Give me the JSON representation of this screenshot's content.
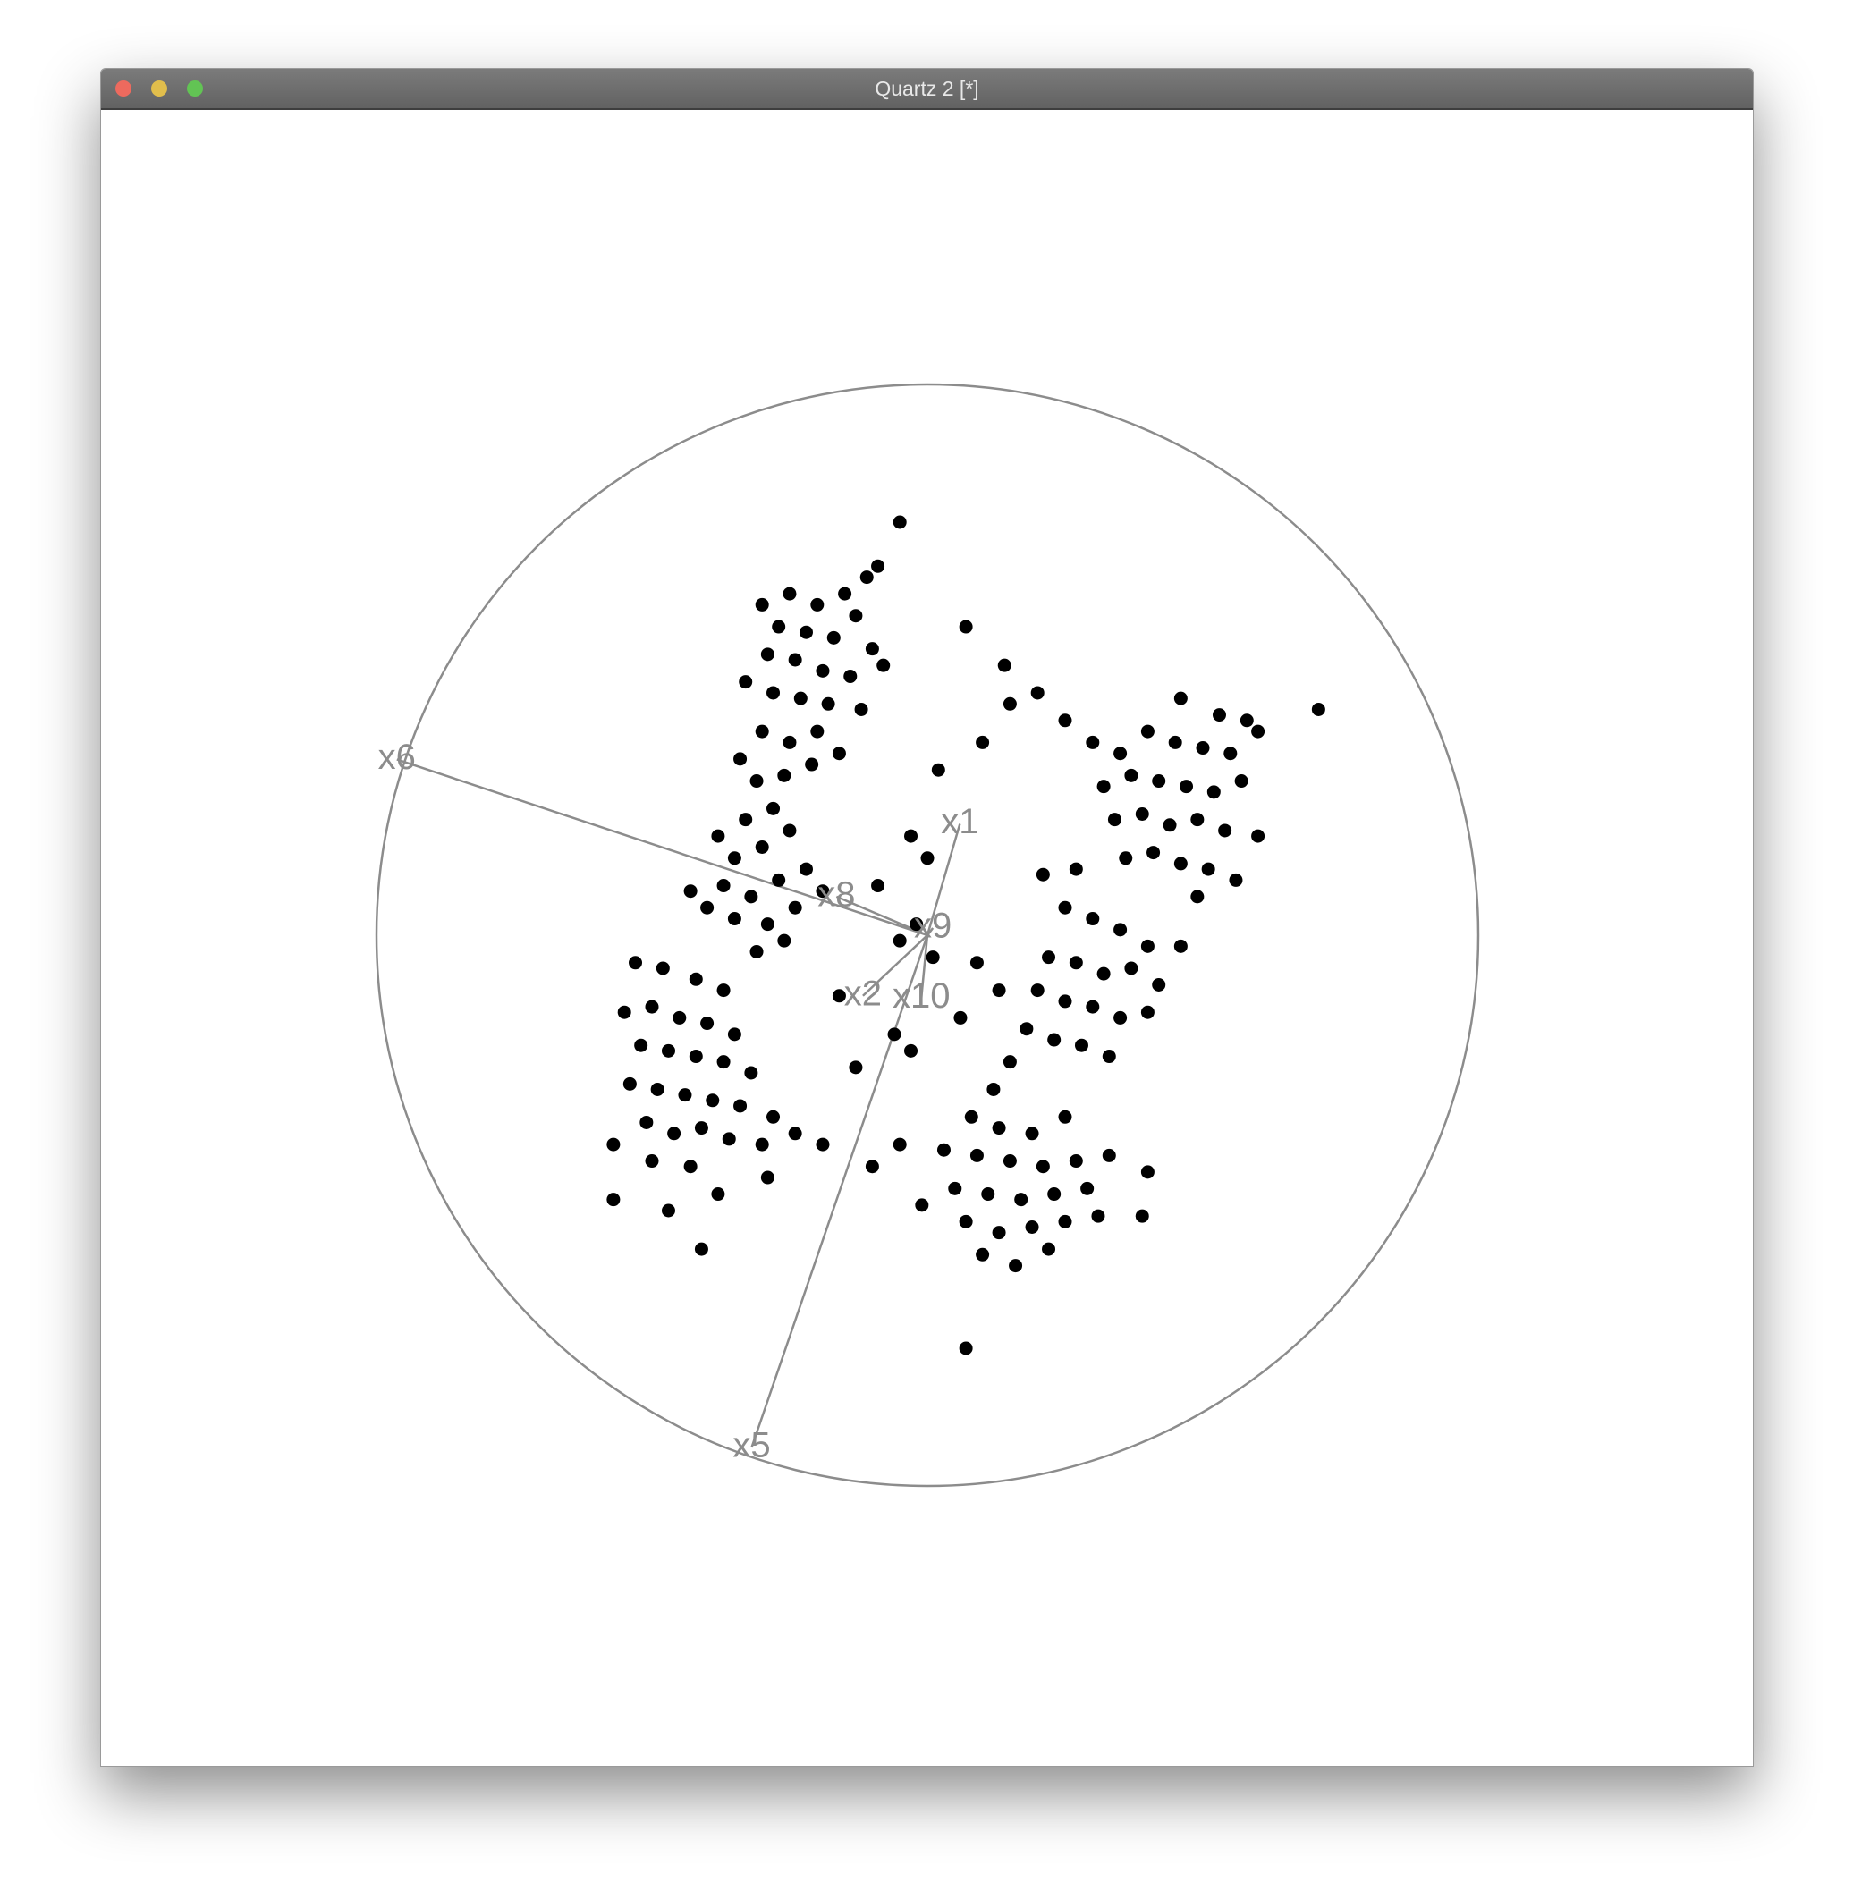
{
  "window": {
    "title": "Quartz 2 [*]"
  },
  "chart_data": {
    "type": "tour",
    "axes": [
      {
        "name": "x6",
        "x": -0.963,
        "y": 0.319
      },
      {
        "name": "x5",
        "x": -0.319,
        "y": -0.93
      },
      {
        "name": "x1",
        "x": 0.059,
        "y": 0.202
      },
      {
        "name": "x8",
        "x": -0.165,
        "y": 0.07
      },
      {
        "name": "x9",
        "x": 0.01,
        "y": 0.013
      },
      {
        "name": "x2",
        "x": -0.117,
        "y": -0.11
      },
      {
        "name": "x10",
        "x": -0.011,
        "y": -0.114
      }
    ],
    "points": [
      [
        -0.05,
        0.75
      ],
      [
        -0.09,
        0.67
      ],
      [
        -0.11,
        0.65
      ],
      [
        -0.15,
        0.62
      ],
      [
        -0.13,
        0.58
      ],
      [
        -0.2,
        0.6
      ],
      [
        -0.25,
        0.62
      ],
      [
        -0.3,
        0.6
      ],
      [
        -0.27,
        0.56
      ],
      [
        -0.22,
        0.55
      ],
      [
        -0.17,
        0.54
      ],
      [
        -0.1,
        0.52
      ],
      [
        -0.08,
        0.49
      ],
      [
        -0.14,
        0.47
      ],
      [
        -0.19,
        0.48
      ],
      [
        -0.24,
        0.5
      ],
      [
        -0.29,
        0.51
      ],
      [
        -0.33,
        0.46
      ],
      [
        -0.28,
        0.44
      ],
      [
        -0.23,
        0.43
      ],
      [
        -0.18,
        0.42
      ],
      [
        -0.12,
        0.41
      ],
      [
        -0.2,
        0.37
      ],
      [
        -0.25,
        0.35
      ],
      [
        -0.3,
        0.37
      ],
      [
        -0.34,
        0.32
      ],
      [
        -0.31,
        0.28
      ],
      [
        -0.26,
        0.29
      ],
      [
        -0.21,
        0.31
      ],
      [
        -0.16,
        0.33
      ],
      [
        -0.28,
        0.23
      ],
      [
        -0.33,
        0.21
      ],
      [
        -0.38,
        0.18
      ],
      [
        -0.35,
        0.14
      ],
      [
        -0.3,
        0.16
      ],
      [
        -0.25,
        0.19
      ],
      [
        -0.22,
        0.12
      ],
      [
        -0.27,
        0.1
      ],
      [
        -0.32,
        0.07
      ],
      [
        -0.37,
        0.09
      ],
      [
        -0.4,
        0.05
      ],
      [
        -0.35,
        0.03
      ],
      [
        -0.29,
        0.02
      ],
      [
        -0.24,
        0.05
      ],
      [
        -0.19,
        0.08
      ],
      [
        -0.43,
        0.08
      ],
      [
        -0.31,
        -0.03
      ],
      [
        -0.26,
        -0.01
      ],
      [
        -0.53,
        -0.05
      ],
      [
        -0.48,
        -0.06
      ],
      [
        -0.42,
        -0.08
      ],
      [
        -0.37,
        -0.1
      ],
      [
        -0.55,
        -0.14
      ],
      [
        -0.5,
        -0.13
      ],
      [
        -0.45,
        -0.15
      ],
      [
        -0.4,
        -0.16
      ],
      [
        -0.35,
        -0.18
      ],
      [
        -0.52,
        -0.2
      ],
      [
        -0.47,
        -0.21
      ],
      [
        -0.42,
        -0.22
      ],
      [
        -0.37,
        -0.23
      ],
      [
        -0.32,
        -0.25
      ],
      [
        -0.54,
        -0.27
      ],
      [
        -0.49,
        -0.28
      ],
      [
        -0.44,
        -0.29
      ],
      [
        -0.39,
        -0.3
      ],
      [
        -0.34,
        -0.31
      ],
      [
        -0.28,
        -0.33
      ],
      [
        -0.51,
        -0.34
      ],
      [
        -0.46,
        -0.36
      ],
      [
        -0.41,
        -0.35
      ],
      [
        -0.36,
        -0.37
      ],
      [
        -0.3,
        -0.38
      ],
      [
        -0.24,
        -0.36
      ],
      [
        -0.57,
        -0.38
      ],
      [
        -0.5,
        -0.41
      ],
      [
        -0.43,
        -0.42
      ],
      [
        -0.19,
        -0.38
      ],
      [
        -0.57,
        -0.48
      ],
      [
        -0.47,
        -0.5
      ],
      [
        -0.41,
        -0.57
      ],
      [
        -0.29,
        -0.44
      ],
      [
        -0.38,
        -0.47
      ],
      [
        0.71,
        0.41
      ],
      [
        0.46,
        0.43
      ],
      [
        0.53,
        0.4
      ],
      [
        0.58,
        0.39
      ],
      [
        0.35,
        0.33
      ],
      [
        0.4,
        0.37
      ],
      [
        0.45,
        0.35
      ],
      [
        0.5,
        0.34
      ],
      [
        0.55,
        0.33
      ],
      [
        0.6,
        0.37
      ],
      [
        0.32,
        0.27
      ],
      [
        0.37,
        0.29
      ],
      [
        0.42,
        0.28
      ],
      [
        0.47,
        0.27
      ],
      [
        0.52,
        0.26
      ],
      [
        0.57,
        0.28
      ],
      [
        0.34,
        0.21
      ],
      [
        0.39,
        0.22
      ],
      [
        0.44,
        0.2
      ],
      [
        0.49,
        0.21
      ],
      [
        0.54,
        0.19
      ],
      [
        0.6,
        0.18
      ],
      [
        0.36,
        0.14
      ],
      [
        0.41,
        0.15
      ],
      [
        0.46,
        0.13
      ],
      [
        0.51,
        0.12
      ],
      [
        0.56,
        0.1
      ],
      [
        0.49,
        0.07
      ],
      [
        0.3,
        0.35
      ],
      [
        0.25,
        0.39
      ],
      [
        0.2,
        0.44
      ],
      [
        0.14,
        0.49
      ],
      [
        0.07,
        0.56
      ],
      [
        0.15,
        0.42
      ],
      [
        0.1,
        0.35
      ],
      [
        0.02,
        0.3
      ],
      [
        0.25,
        0.05
      ],
      [
        0.3,
        0.03
      ],
      [
        0.35,
        0.01
      ],
      [
        0.4,
        -0.02
      ],
      [
        0.22,
        -0.04
      ],
      [
        0.27,
        -0.05
      ],
      [
        0.32,
        -0.07
      ],
      [
        0.37,
        -0.06
      ],
      [
        0.42,
        -0.09
      ],
      [
        0.2,
        -0.1
      ],
      [
        0.25,
        -0.12
      ],
      [
        0.3,
        -0.13
      ],
      [
        0.35,
        -0.15
      ],
      [
        0.4,
        -0.14
      ],
      [
        0.18,
        -0.17
      ],
      [
        0.23,
        -0.19
      ],
      [
        0.28,
        -0.2
      ],
      [
        0.33,
        -0.22
      ],
      [
        0.15,
        -0.23
      ],
      [
        0.13,
        -0.1
      ],
      [
        0.09,
        -0.05
      ],
      [
        0.21,
        0.11
      ],
      [
        0.27,
        0.12
      ],
      [
        0.46,
        -0.02
      ],
      [
        0.06,
        -0.15
      ],
      [
        0.12,
        -0.28
      ],
      [
        0.08,
        -0.33
      ],
      [
        0.13,
        -0.35
      ],
      [
        0.19,
        -0.36
      ],
      [
        0.25,
        -0.33
      ],
      [
        0.03,
        -0.39
      ],
      [
        0.09,
        -0.4
      ],
      [
        0.15,
        -0.41
      ],
      [
        0.21,
        -0.42
      ],
      [
        0.27,
        -0.41
      ],
      [
        0.33,
        -0.4
      ],
      [
        0.05,
        -0.46
      ],
      [
        0.11,
        -0.47
      ],
      [
        0.17,
        -0.48
      ],
      [
        0.23,
        -0.47
      ],
      [
        0.29,
        -0.46
      ],
      [
        0.07,
        -0.52
      ],
      [
        0.13,
        -0.54
      ],
      [
        0.19,
        -0.53
      ],
      [
        0.25,
        -0.52
      ],
      [
        0.31,
        -0.51
      ],
      [
        0.1,
        -0.58
      ],
      [
        0.16,
        -0.6
      ],
      [
        0.22,
        -0.57
      ],
      [
        -0.01,
        -0.49
      ],
      [
        -0.05,
        -0.38
      ],
      [
        -0.1,
        -0.42
      ],
      [
        0.07,
        -0.75
      ],
      [
        0.4,
        -0.43
      ],
      [
        0.39,
        -0.51
      ],
      [
        -0.03,
        0.18
      ],
      [
        0,
        0.14
      ],
      [
        -0.02,
        0.02
      ],
      [
        -0.05,
        -0.01
      ],
      [
        0.01,
        -0.04
      ],
      [
        -0.06,
        -0.18
      ],
      [
        -0.03,
        -0.21
      ],
      [
        -0.13,
        -0.24
      ],
      [
        -0.16,
        -0.11
      ],
      [
        -0.09,
        0.09
      ]
    ],
    "point_color": "#000000",
    "axis_color": "#8c8c8c"
  }
}
